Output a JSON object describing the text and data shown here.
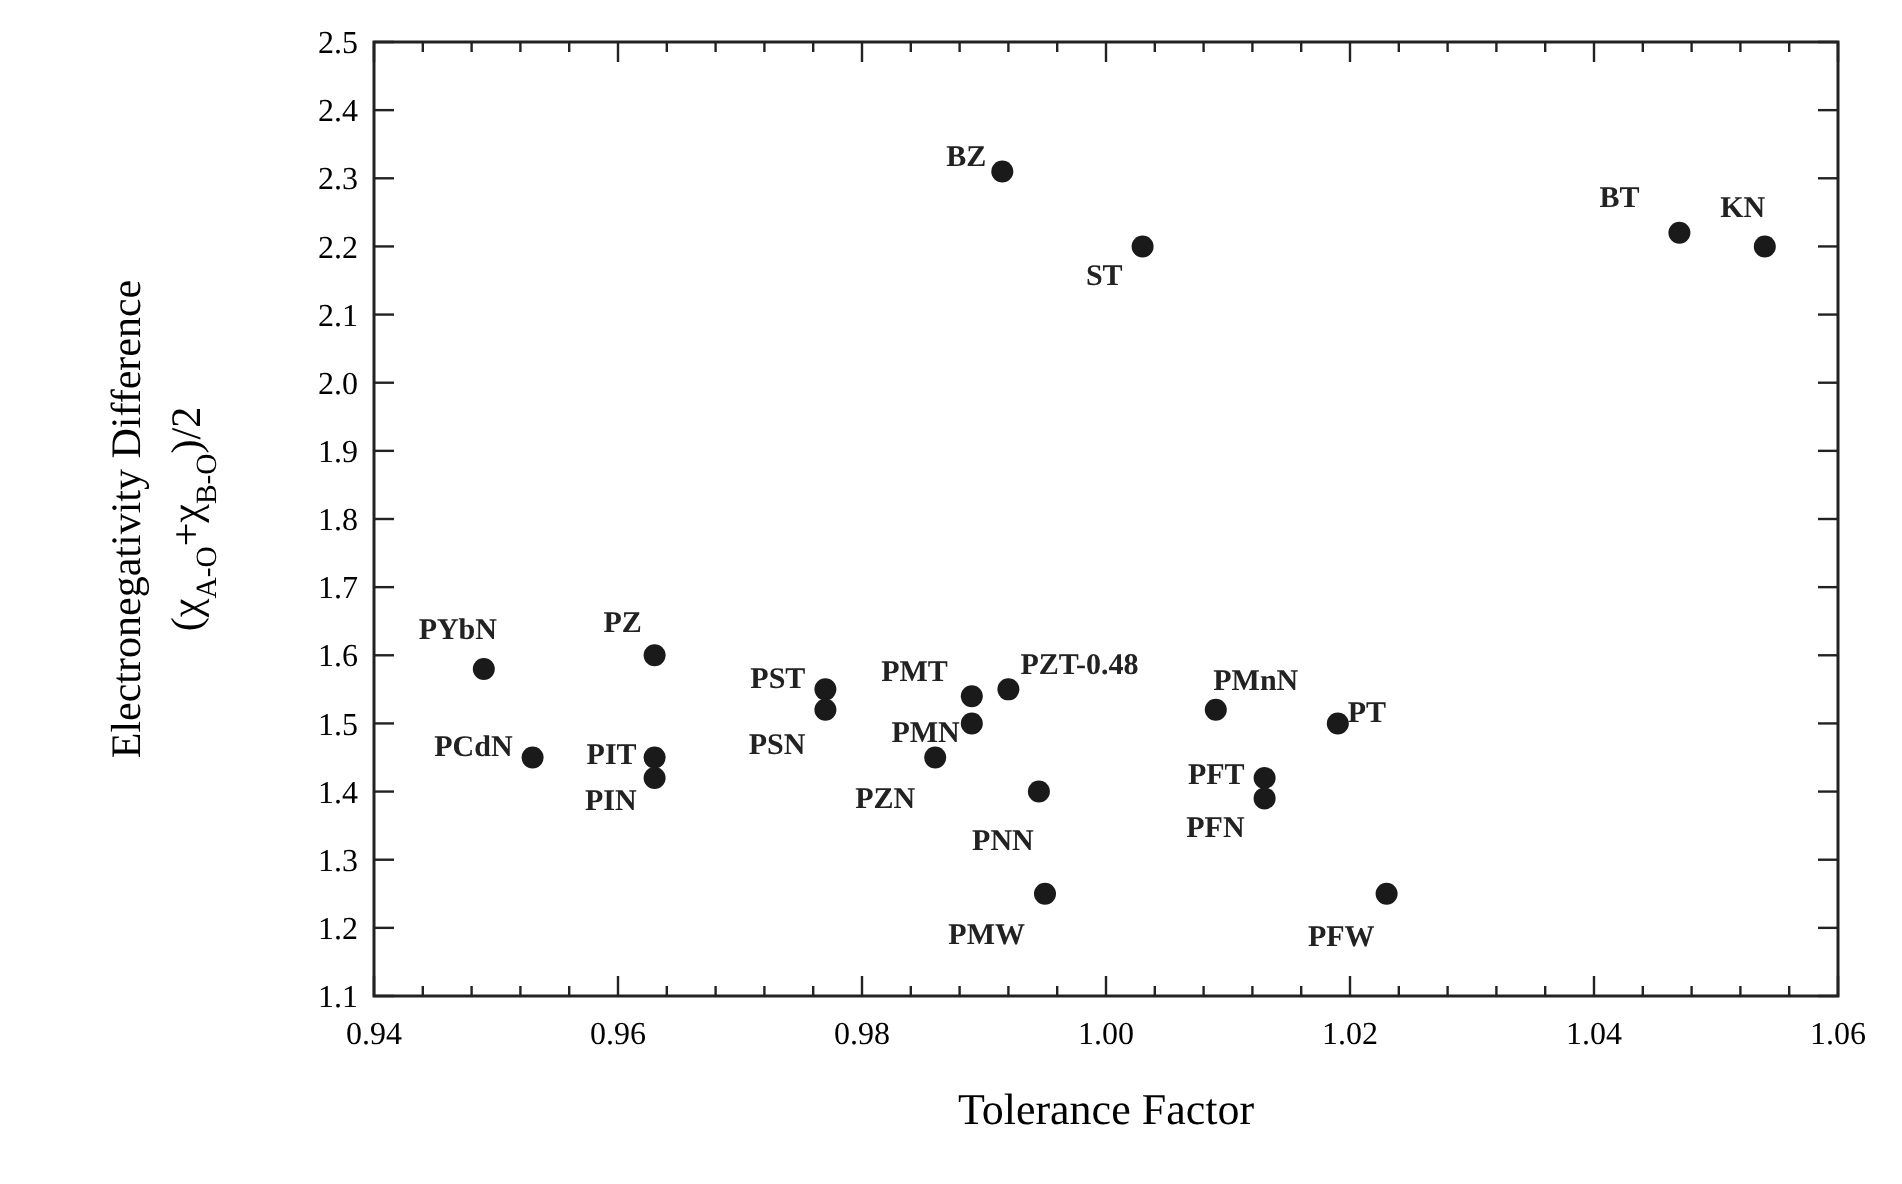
{
  "chart_data": {
    "type": "scatter",
    "xlabel": "Tolerance Factor",
    "ylabel": "Electronegativity Difference\n(χ$_{A-O}$+χ$_{B-O}$)/2",
    "series": [
      {
        "color": "#1a1a1a",
        "x": [
          0.9915,
          1.003,
          1.047,
          1.054,
          0.949,
          0.953,
          0.963,
          0.963,
          0.963,
          0.977,
          0.977,
          0.989,
          0.989,
          0.992,
          0.986,
          0.9945,
          0.995,
          1.009,
          1.019,
          1.013,
          1.013,
          1.023
        ],
        "values": [
          2.31,
          2.2,
          2.22,
          2.2,
          1.58,
          1.45,
          1.6,
          1.45,
          1.42,
          1.55,
          1.52,
          1.54,
          1.5,
          1.55,
          1.45,
          1.4,
          1.25,
          1.52,
          1.5,
          1.42,
          1.39,
          1.25
        ]
      }
    ],
    "annotations": [
      {
        "text": "BZ",
        "x": 0.9915,
        "y": 2.31
      },
      {
        "text": "ST",
        "x": 1.003,
        "y": 2.2
      },
      {
        "text": "BT",
        "x": 1.047,
        "y": 2.22
      },
      {
        "text": "KN",
        "x": 1.054,
        "y": 2.2
      },
      {
        "text": "PYbN",
        "x": 0.949,
        "y": 1.58
      },
      {
        "text": "PCdN",
        "x": 0.953,
        "y": 1.45
      },
      {
        "text": "PZ",
        "x": 0.963,
        "y": 1.6
      },
      {
        "text": "PIT",
        "x": 0.963,
        "y": 1.45
      },
      {
        "text": "PIN",
        "x": 0.963,
        "y": 1.42
      },
      {
        "text": "PST",
        "x": 0.977,
        "y": 1.55
      },
      {
        "text": "PSN",
        "x": 0.977,
        "y": 1.52
      },
      {
        "text": "PMT",
        "x": 0.989,
        "y": 1.54
      },
      {
        "text": "PMN",
        "x": 0.989,
        "y": 1.5
      },
      {
        "text": "PZT-0.48",
        "x": 0.992,
        "y": 1.55
      },
      {
        "text": "PZN",
        "x": 0.986,
        "y": 1.45
      },
      {
        "text": "PNN",
        "x": 0.9945,
        "y": 1.4
      },
      {
        "text": "PMW",
        "x": 0.995,
        "y": 1.25
      },
      {
        "text": "PMnN",
        "x": 1.009,
        "y": 1.52
      },
      {
        "text": "PT",
        "x": 1.019,
        "y": 1.5
      },
      {
        "text": "PFT",
        "x": 1.013,
        "y": 1.42
      },
      {
        "text": "PFN",
        "x": 1.013,
        "y": 1.39
      },
      {
        "text": "PFW",
        "x": 1.023,
        "y": 1.25
      }
    ],
    "xlim": [
      0.94,
      1.06
    ],
    "xticks": [
      0.94,
      {
        "value": 0.944,
        "label": null
      },
      {
        "value": 0.948,
        "label": null
      },
      {
        "value": 0.952,
        "label": null
      },
      {
        "value": 0.956,
        "label": null
      },
      0.96,
      {
        "value": 0.964,
        "label": null
      },
      {
        "value": 0.968,
        "label": null
      },
      {
        "value": 0.972,
        "label": null
      },
      {
        "value": 0.976,
        "label": null
      },
      0.98,
      {
        "value": 0.984,
        "label": null
      },
      {
        "value": 0.988,
        "label": null
      },
      {
        "value": 0.992,
        "label": null
      },
      {
        "value": 0.996,
        "label": null
      },
      {
        "value": 1,
        "label": "1.00"
      },
      {
        "value": 1.004,
        "label": null
      },
      {
        "value": 1.008,
        "label": null
      },
      {
        "value": 1.012,
        "label": null
      },
      {
        "value": 1.016,
        "label": null
      },
      1.02,
      {
        "value": 1.024,
        "label": null
      },
      {
        "value": 1.028,
        "label": null
      },
      {
        "value": 1.032,
        "label": null
      },
      {
        "value": 1.036,
        "label": null
      },
      1.04,
      {
        "value": 1.044,
        "label": null
      },
      {
        "value": 1.048,
        "label": null
      },
      {
        "value": 1.052,
        "label": null
      },
      {
        "value": 1.056,
        "label": null
      },
      1.06
    ],
    "ylim": [
      1.1,
      2.5
    ],
    "yticks": [
      1.1,
      1.2,
      1.3,
      1.4,
      1.5,
      1.6,
      1.7,
      1.8,
      1.9,
      {
        "value": 2,
        "label": "2.0"
      },
      2.1,
      2.2,
      2.3,
      2.4,
      2.5
    ],
    "marker": "circle"
  }
}
